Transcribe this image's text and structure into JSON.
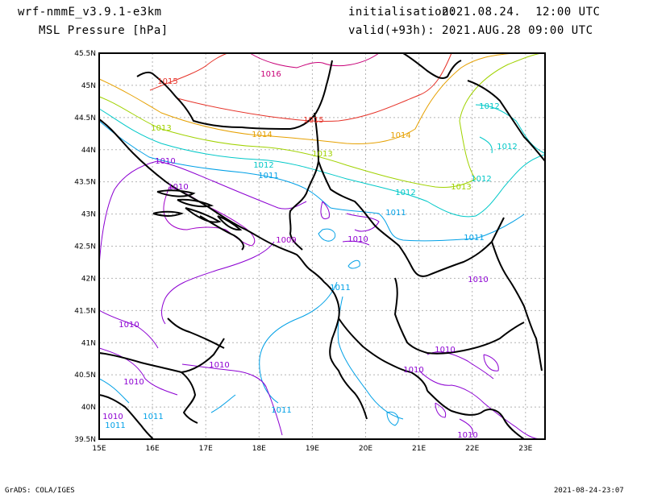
{
  "header": {
    "model": "wrf-nmmE_v3.9.1-e3km",
    "field": "MSL Pressure [hPa]",
    "init_label": "initialisation:",
    "init_value": "2021.08.24.  12:00 UTC",
    "valid_label": "valid(+93h):",
    "valid_value": "2021.AUG.28 09:00 UTC"
  },
  "footer": {
    "credit": "GrADS: COLA/IGES",
    "stamp": "2021-08-24-23:07"
  },
  "map": {
    "lon_labels": [
      "15E",
      "16E",
      "17E",
      "18E",
      "19E",
      "20E",
      "21E",
      "22E",
      "23E"
    ],
    "lat_labels": [
      "45.5N",
      "45N",
      "44.5N",
      "44N",
      "43.5N",
      "43N",
      "42.5N",
      "42N",
      "41.5N",
      "41N",
      "40.5N",
      "40N",
      "39.5N"
    ],
    "colors": {
      "c1009": "#a000c8",
      "c1010": "#8c00d2",
      "c1011": "#00a0e6",
      "c1012": "#00c8c8",
      "c1013": "#a0d200",
      "c1014": "#e6a000",
      "c1015": "#e63228",
      "c1016": "#c80078"
    },
    "contour_labels": [
      {
        "text": "1016",
        "color": "#c80078"
      },
      {
        "text": "1015",
        "color": "#e63228"
      },
      {
        "text": "1015",
        "color": "#e63228"
      },
      {
        "text": "1014",
        "color": "#e6a000"
      },
      {
        "text": "1014",
        "color": "#e6a000"
      },
      {
        "text": "1013",
        "color": "#a0d200"
      },
      {
        "text": "1013",
        "color": "#a0d200"
      },
      {
        "text": "1013",
        "color": "#a0d200"
      },
      {
        "text": "1012",
        "color": "#00c8c8"
      },
      {
        "text": "1012",
        "color": "#00c8c8"
      },
      {
        "text": "1012",
        "color": "#00c8c8"
      },
      {
        "text": "1012",
        "color": "#00c8c8"
      },
      {
        "text": "1012",
        "color": "#00c8c8"
      },
      {
        "text": "1011",
        "color": "#00a0e6"
      },
      {
        "text": "1011",
        "color": "#00a0e6"
      },
      {
        "text": "1011",
        "color": "#00a0e6"
      },
      {
        "text": "1011",
        "color": "#00a0e6"
      },
      {
        "text": "1011",
        "color": "#00a0e6"
      },
      {
        "text": "1011",
        "color": "#00a0e6"
      },
      {
        "text": "1010",
        "color": "#8c00d2"
      },
      {
        "text": "1009",
        "color": "#a000c8"
      },
      {
        "text": "1010",
        "color": "#8c00d2"
      },
      {
        "text": "1010",
        "color": "#8c00d2"
      },
      {
        "text": "1010",
        "color": "#8c00d2"
      },
      {
        "text": "1010",
        "color": "#8c00d2"
      },
      {
        "text": "1010",
        "color": "#8c00d2"
      },
      {
        "text": "1010",
        "color": "#8c00d2"
      },
      {
        "text": "1010",
        "color": "#8c00d2"
      },
      {
        "text": "1010",
        "color": "#8c00d2"
      },
      {
        "text": "1010",
        "color": "#8c00d2"
      },
      {
        "text": "1010",
        "color": "#8c00d2"
      },
      {
        "text": "1011",
        "color": "#00a0e6"
      }
    ]
  }
}
